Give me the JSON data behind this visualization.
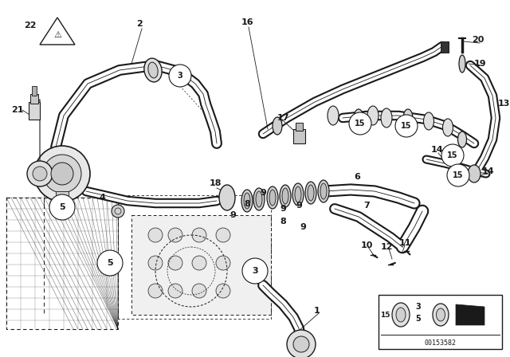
{
  "bg_color": "#ffffff",
  "line_color": "#1a1a1a",
  "fig_width": 6.4,
  "fig_height": 4.48,
  "dpi": 100,
  "watermark": "00153582"
}
